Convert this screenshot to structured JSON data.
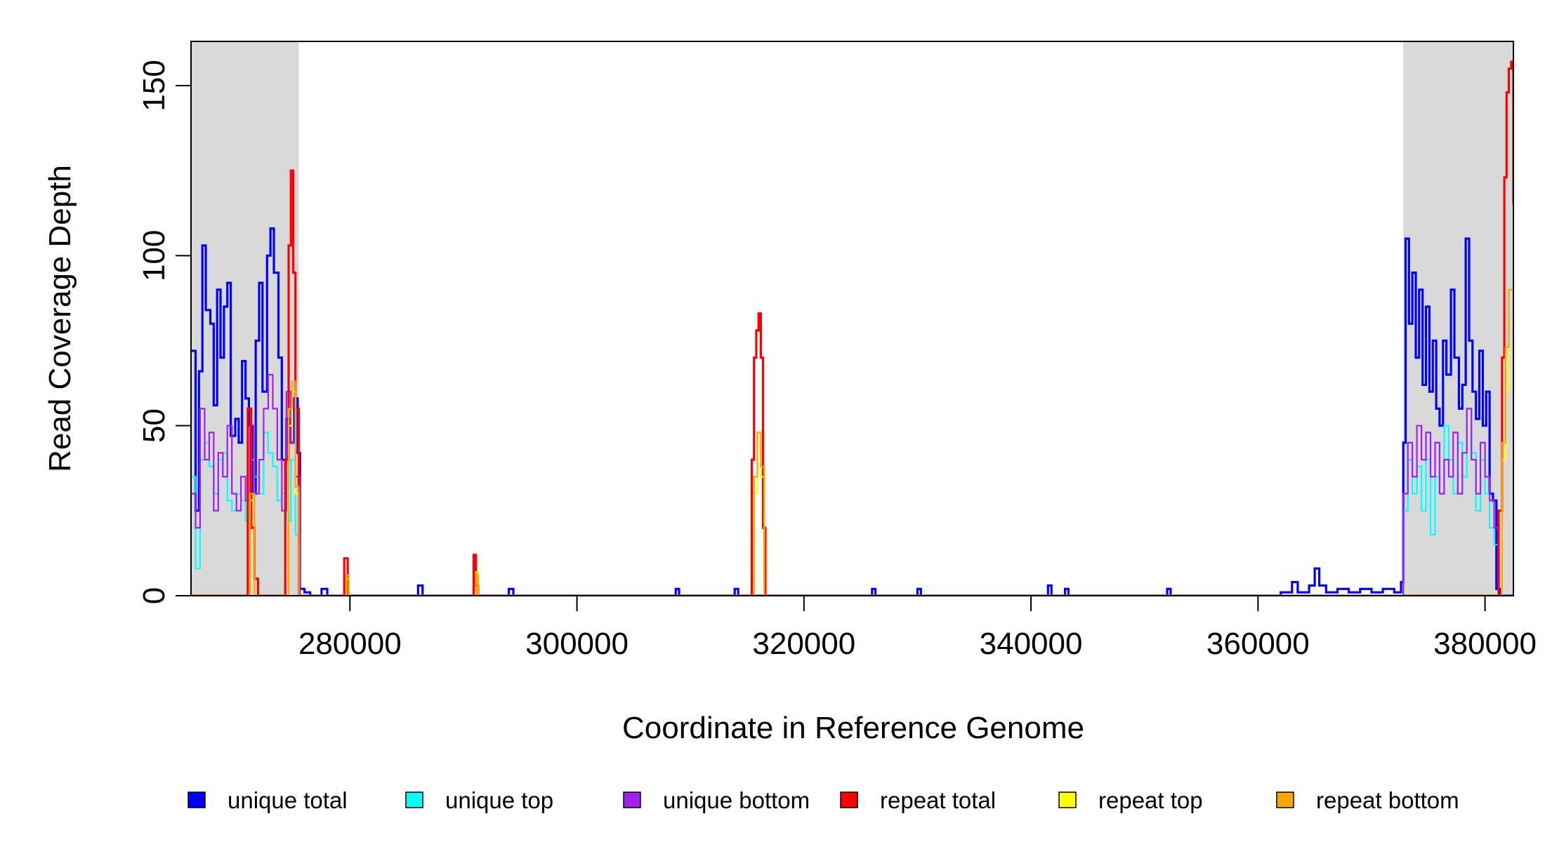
{
  "chart_data": {
    "type": "line",
    "title": "",
    "xlabel": "Coordinate in Reference Genome",
    "ylabel": "Read Coverage Depth",
    "xlim": [
      266000,
      382500
    ],
    "ylim": [
      0,
      163
    ],
    "x_ticks": [
      280000,
      300000,
      320000,
      340000,
      360000,
      380000
    ],
    "x_tick_labels": [
      "280000",
      "300000",
      "320000",
      "340000",
      "360000",
      "380000"
    ],
    "y_ticks": [
      0,
      50,
      100,
      150
    ],
    "y_tick_labels": [
      "0",
      "50",
      "100",
      "150"
    ],
    "grid": false,
    "legend_position": "bottom",
    "shaded_regions": [
      {
        "x0": 266000,
        "x1": 275500,
        "color": "#d9d9d9"
      },
      {
        "x0": 372800,
        "x1": 382500,
        "color": "#d9d9d9"
      }
    ],
    "series": [
      {
        "name": "unique total",
        "color": "#0000ff",
        "points": [
          [
            266000,
            72
          ],
          [
            266400,
            25
          ],
          [
            266700,
            66
          ],
          [
            267000,
            103
          ],
          [
            267300,
            84
          ],
          [
            267700,
            80
          ],
          [
            268000,
            56
          ],
          [
            268300,
            90
          ],
          [
            268600,
            70
          ],
          [
            268900,
            85
          ],
          [
            269200,
            92
          ],
          [
            269500,
            47
          ],
          [
            269900,
            52
          ],
          [
            270200,
            45
          ],
          [
            270500,
            69
          ],
          [
            270800,
            58
          ],
          [
            271100,
            50
          ],
          [
            271400,
            30
          ],
          [
            271700,
            75
          ],
          [
            272000,
            92
          ],
          [
            272300,
            60
          ],
          [
            272700,
            100
          ],
          [
            273000,
            108
          ],
          [
            273300,
            95
          ],
          [
            273700,
            70
          ],
          [
            274000,
            40
          ],
          [
            274400,
            52
          ],
          [
            274700,
            45
          ],
          [
            275100,
            58
          ],
          [
            275400,
            42
          ],
          [
            275600,
            2
          ],
          [
            276000,
            1
          ],
          [
            276500,
            0
          ],
          [
            277500,
            2
          ],
          [
            278000,
            0
          ],
          [
            286000,
            3
          ],
          [
            286400,
            0
          ],
          [
            294000,
            2
          ],
          [
            294400,
            0
          ],
          [
            308700,
            2
          ],
          [
            309000,
            0
          ],
          [
            313900,
            2
          ],
          [
            314200,
            0
          ],
          [
            326000,
            2
          ],
          [
            326300,
            0
          ],
          [
            330000,
            2
          ],
          [
            330300,
            0
          ],
          [
            341500,
            3
          ],
          [
            341800,
            0
          ],
          [
            343000,
            2
          ],
          [
            343300,
            0
          ],
          [
            352000,
            2
          ],
          [
            352300,
            0
          ],
          [
            362000,
            1
          ],
          [
            363000,
            4
          ],
          [
            363500,
            1
          ],
          [
            364500,
            3
          ],
          [
            365000,
            8
          ],
          [
            365400,
            3
          ],
          [
            366000,
            1
          ],
          [
            367000,
            2
          ],
          [
            368000,
            1
          ],
          [
            369000,
            2
          ],
          [
            370000,
            1
          ],
          [
            371000,
            2
          ],
          [
            372000,
            1
          ],
          [
            372600,
            4
          ],
          [
            372800,
            45
          ],
          [
            373000,
            105
          ],
          [
            373300,
            80
          ],
          [
            373600,
            95
          ],
          [
            373900,
            70
          ],
          [
            374200,
            90
          ],
          [
            374500,
            62
          ],
          [
            374800,
            85
          ],
          [
            375100,
            60
          ],
          [
            375400,
            75
          ],
          [
            375700,
            55
          ],
          [
            376000,
            50
          ],
          [
            376300,
            75
          ],
          [
            376600,
            65
          ],
          [
            377000,
            90
          ],
          [
            377300,
            70
          ],
          [
            377700,
            55
          ],
          [
            378000,
            62
          ],
          [
            378300,
            105
          ],
          [
            378600,
            75
          ],
          [
            378900,
            60
          ],
          [
            379200,
            52
          ],
          [
            379500,
            72
          ],
          [
            379800,
            50
          ],
          [
            380100,
            60
          ],
          [
            380400,
            30
          ],
          [
            380700,
            28
          ],
          [
            381000,
            2
          ],
          [
            381300,
            0
          ],
          [
            382500,
            0
          ]
        ]
      },
      {
        "name": "unique top",
        "color": "#00ffff",
        "points": [
          [
            266000,
            35
          ],
          [
            266400,
            8
          ],
          [
            266800,
            40
          ],
          [
            267200,
            45
          ],
          [
            267600,
            38
          ],
          [
            268000,
            30
          ],
          [
            268400,
            40
          ],
          [
            268800,
            42
          ],
          [
            269200,
            28
          ],
          [
            269600,
            25
          ],
          [
            270000,
            30
          ],
          [
            270400,
            28
          ],
          [
            270800,
            22
          ],
          [
            271200,
            40
          ],
          [
            271600,
            35
          ],
          [
            272000,
            30
          ],
          [
            272400,
            48
          ],
          [
            272800,
            42
          ],
          [
            273200,
            38
          ],
          [
            273600,
            28
          ],
          [
            274000,
            30
          ],
          [
            274400,
            22
          ],
          [
            274800,
            40
          ],
          [
            275200,
            18
          ],
          [
            275600,
            0
          ],
          [
            372800,
            25
          ],
          [
            373200,
            40
          ],
          [
            373600,
            30
          ],
          [
            374000,
            38
          ],
          [
            374400,
            25
          ],
          [
            374800,
            40
          ],
          [
            375200,
            18
          ],
          [
            375600,
            35
          ],
          [
            376000,
            30
          ],
          [
            376400,
            50
          ],
          [
            376800,
            40
          ],
          [
            377200,
            30
          ],
          [
            377600,
            45
          ],
          [
            378000,
            35
          ],
          [
            378400,
            55
          ],
          [
            378800,
            42
          ],
          [
            379200,
            25
          ],
          [
            379600,
            40
          ],
          [
            380000,
            30
          ],
          [
            380400,
            20
          ],
          [
            380800,
            15
          ],
          [
            381200,
            0
          ],
          [
            382500,
            0
          ]
        ]
      },
      {
        "name": "unique bottom",
        "color": "#a020f0",
        "points": [
          [
            266000,
            30
          ],
          [
            266400,
            20
          ],
          [
            266800,
            55
          ],
          [
            267200,
            40
          ],
          [
            267600,
            48
          ],
          [
            268000,
            25
          ],
          [
            268400,
            42
          ],
          [
            268800,
            35
          ],
          [
            269200,
            50
          ],
          [
            269600,
            30
          ],
          [
            270000,
            25
          ],
          [
            270400,
            35
          ],
          [
            270800,
            28
          ],
          [
            271200,
            50
          ],
          [
            271600,
            30
          ],
          [
            272000,
            40
          ],
          [
            272400,
            55
          ],
          [
            272800,
            65
          ],
          [
            273200,
            55
          ],
          [
            273600,
            40
          ],
          [
            274000,
            25
          ],
          [
            274400,
            60
          ],
          [
            274800,
            45
          ],
          [
            275200,
            35
          ],
          [
            275600,
            0
          ],
          [
            372800,
            30
          ],
          [
            373200,
            45
          ],
          [
            373600,
            35
          ],
          [
            374000,
            50
          ],
          [
            374400,
            40
          ],
          [
            374800,
            48
          ],
          [
            375200,
            35
          ],
          [
            375600,
            45
          ],
          [
            376000,
            30
          ],
          [
            376400,
            40
          ],
          [
            376800,
            35
          ],
          [
            377200,
            48
          ],
          [
            377600,
            30
          ],
          [
            378000,
            42
          ],
          [
            378400,
            55
          ],
          [
            378800,
            40
          ],
          [
            379200,
            30
          ],
          [
            379600,
            45
          ],
          [
            380000,
            35
          ],
          [
            380400,
            28
          ],
          [
            380800,
            20
          ],
          [
            381200,
            0
          ],
          [
            382500,
            0
          ]
        ]
      },
      {
        "name": "repeat total",
        "color": "#ff0000",
        "points": [
          [
            266000,
            0
          ],
          [
            270800,
            0
          ],
          [
            271000,
            55
          ],
          [
            271300,
            20
          ],
          [
            271600,
            5
          ],
          [
            271900,
            0
          ],
          [
            274000,
            0
          ],
          [
            274300,
            40
          ],
          [
            274600,
            103
          ],
          [
            274800,
            125
          ],
          [
            275000,
            95
          ],
          [
            275200,
            55
          ],
          [
            275500,
            0
          ],
          [
            279300,
            0
          ],
          [
            279500,
            11
          ],
          [
            279800,
            0
          ],
          [
            290700,
            0
          ],
          [
            290900,
            12
          ],
          [
            291100,
            3
          ],
          [
            291300,
            0
          ],
          [
            315200,
            0
          ],
          [
            315400,
            40
          ],
          [
            315600,
            70
          ],
          [
            315800,
            78
          ],
          [
            316000,
            83
          ],
          [
            316200,
            70
          ],
          [
            316400,
            20
          ],
          [
            316600,
            0
          ],
          [
            381000,
            0
          ],
          [
            381200,
            25
          ],
          [
            381500,
            70
          ],
          [
            381700,
            123
          ],
          [
            381900,
            148
          ],
          [
            382100,
            155
          ],
          [
            382300,
            157
          ],
          [
            382500,
            115
          ]
        ]
      },
      {
        "name": "repeat top",
        "color": "#ffff00",
        "points": [
          [
            266000,
            0
          ],
          [
            271000,
            0
          ],
          [
            271200,
            28
          ],
          [
            271600,
            0
          ],
          [
            274300,
            0
          ],
          [
            274600,
            50
          ],
          [
            274900,
            60
          ],
          [
            275200,
            30
          ],
          [
            275500,
            0
          ],
          [
            279500,
            0
          ],
          [
            279700,
            5
          ],
          [
            279900,
            0
          ],
          [
            290900,
            0
          ],
          [
            291100,
            7
          ],
          [
            291300,
            0
          ],
          [
            315400,
            0
          ],
          [
            315600,
            30
          ],
          [
            315900,
            45
          ],
          [
            316200,
            35
          ],
          [
            316500,
            0
          ],
          [
            381200,
            0
          ],
          [
            381500,
            40
          ],
          [
            381800,
            60
          ],
          [
            382100,
            80
          ],
          [
            382500,
            70
          ]
        ]
      },
      {
        "name": "repeat bottom",
        "color": "#ffa500",
        "points": [
          [
            266000,
            0
          ],
          [
            271000,
            0
          ],
          [
            271200,
            30
          ],
          [
            271600,
            0
          ],
          [
            274300,
            0
          ],
          [
            274600,
            55
          ],
          [
            274900,
            63
          ],
          [
            275200,
            32
          ],
          [
            275500,
            0
          ],
          [
            279500,
            0
          ],
          [
            279700,
            6
          ],
          [
            279900,
            0
          ],
          [
            290900,
            0
          ],
          [
            291100,
            6
          ],
          [
            291300,
            0
          ],
          [
            315400,
            0
          ],
          [
            315600,
            35
          ],
          [
            315900,
            48
          ],
          [
            316200,
            38
          ],
          [
            316500,
            0
          ],
          [
            381200,
            0
          ],
          [
            381500,
            45
          ],
          [
            381800,
            73
          ],
          [
            382100,
            90
          ],
          [
            382500,
            75
          ]
        ]
      }
    ]
  }
}
